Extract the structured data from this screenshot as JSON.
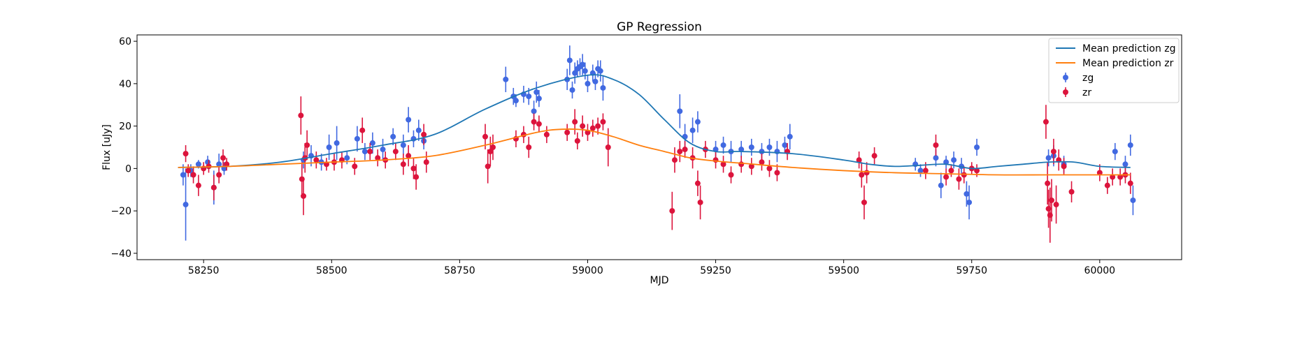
{
  "chart_data": {
    "type": "scatter",
    "title": "GP Regression",
    "xlabel": "MJD",
    "ylabel": "Flux [uJy]",
    "xlim": [
      58120,
      60160
    ],
    "ylim": [
      -43,
      63
    ],
    "xticks": [
      58250,
      58500,
      58750,
      59000,
      59250,
      59500,
      59750,
      60000
    ],
    "yticks": [
      -40,
      -20,
      0,
      20,
      40,
      60
    ],
    "legend_position": "top-right",
    "series": [
      {
        "name": "Mean prediction zg",
        "kind": "line",
        "color": "#1f77b4",
        "x": [
          58200,
          58300,
          58400,
          58500,
          58600,
          58700,
          58800,
          58900,
          59000,
          59050,
          59100,
          59150,
          59200,
          59250,
          59300,
          59400,
          59500,
          59550,
          59600,
          59650,
          59700,
          59750,
          59800,
          59850,
          59900,
          59950,
          60000,
          60060
        ],
        "y": [
          0.5,
          1,
          3,
          7,
          11,
          16,
          28,
          38,
          44,
          42,
          35,
          23,
          12,
          8,
          8,
          7,
          4,
          2,
          1,
          1.5,
          2,
          0,
          1,
          2,
          3,
          3,
          1,
          0.5
        ]
      },
      {
        "name": "Mean prediction zr",
        "kind": "line",
        "color": "#ff7f0e",
        "x": [
          58200,
          58300,
          58400,
          58500,
          58600,
          58700,
          58800,
          58900,
          58950,
          59000,
          59050,
          59100,
          59150,
          59200,
          59250,
          59300,
          59400,
          59500,
          59600,
          59700,
          59800,
          59900,
          60000,
          60060
        ],
        "y": [
          0.5,
          1,
          2,
          3,
          4,
          6,
          11,
          17,
          18.5,
          18,
          15,
          11,
          8,
          5,
          3.5,
          2.5,
          0.5,
          -1,
          -2,
          -2.5,
          -3,
          -3,
          -3,
          -3
        ]
      },
      {
        "name": "zg",
        "kind": "errorbar",
        "color": "#4169e1",
        "points": [
          [
            58210,
            -3,
            5
          ],
          [
            58215,
            -17,
            17
          ],
          [
            58225,
            -1,
            3
          ],
          [
            58240,
            2,
            2
          ],
          [
            58258,
            3,
            3
          ],
          [
            58270,
            -9,
            8
          ],
          [
            58280,
            2,
            5
          ],
          [
            58290,
            0,
            3
          ],
          [
            58445,
            4,
            4
          ],
          [
            58460,
            6,
            5
          ],
          [
            58480,
            3,
            4
          ],
          [
            58495,
            10,
            6
          ],
          [
            58510,
            12,
            8
          ],
          [
            58530,
            5,
            3
          ],
          [
            58550,
            14,
            6
          ],
          [
            58565,
            8,
            4
          ],
          [
            58580,
            12,
            5
          ],
          [
            58600,
            9,
            5
          ],
          [
            58620,
            15,
            4
          ],
          [
            58640,
            11,
            5
          ],
          [
            58650,
            23,
            6
          ],
          [
            58660,
            14,
            4
          ],
          [
            58670,
            18,
            5
          ],
          [
            58680,
            13,
            4
          ],
          [
            58840,
            42,
            6
          ],
          [
            58855,
            34,
            4
          ],
          [
            58860,
            32,
            3
          ],
          [
            58875,
            35,
            4
          ],
          [
            58885,
            34,
            4
          ],
          [
            58895,
            27,
            5
          ],
          [
            58900,
            36,
            5
          ],
          [
            58905,
            33,
            4
          ],
          [
            58960,
            42,
            5
          ],
          [
            58965,
            51,
            7
          ],
          [
            58970,
            37,
            4
          ],
          [
            58975,
            45,
            5
          ],
          [
            58980,
            47,
            4
          ],
          [
            58985,
            48,
            4
          ],
          [
            58990,
            49,
            5
          ],
          [
            58995,
            46,
            4
          ],
          [
            59000,
            40,
            4
          ],
          [
            59010,
            45,
            4
          ],
          [
            59015,
            41,
            4
          ],
          [
            59020,
            47,
            4
          ],
          [
            59025,
            46,
            5
          ],
          [
            59030,
            38,
            6
          ],
          [
            59180,
            27,
            8
          ],
          [
            59190,
            15,
            6
          ],
          [
            59205,
            18,
            6
          ],
          [
            59215,
            22,
            5
          ],
          [
            59250,
            9,
            4
          ],
          [
            59265,
            11,
            4
          ],
          [
            59280,
            8,
            5
          ],
          [
            59300,
            9,
            4
          ],
          [
            59320,
            10,
            4
          ],
          [
            59340,
            8,
            4
          ],
          [
            59355,
            10,
            4
          ],
          [
            59370,
            8,
            5
          ],
          [
            59385,
            11,
            4
          ],
          [
            59395,
            15,
            6
          ],
          [
            59640,
            2,
            3
          ],
          [
            59650,
            -1,
            3
          ],
          [
            59680,
            5,
            4
          ],
          [
            59690,
            -8,
            6
          ],
          [
            59700,
            3,
            3
          ],
          [
            59715,
            4,
            4
          ],
          [
            59730,
            1,
            4
          ],
          [
            59740,
            -12,
            6
          ],
          [
            59745,
            -16,
            8
          ],
          [
            59760,
            10,
            4
          ],
          [
            59900,
            5,
            4
          ],
          [
            59910,
            6,
            5
          ],
          [
            59930,
            2,
            4
          ],
          [
            60030,
            8,
            4
          ],
          [
            60050,
            2,
            4
          ],
          [
            60060,
            11,
            5
          ],
          [
            60065,
            -15,
            7
          ]
        ]
      },
      {
        "name": "zr",
        "kind": "errorbar",
        "color": "#dc143c",
        "points": [
          [
            58215,
            7,
            4
          ],
          [
            58220,
            -1,
            3
          ],
          [
            58230,
            -3,
            4
          ],
          [
            58240,
            -8,
            5
          ],
          [
            58250,
            0,
            3
          ],
          [
            58260,
            1,
            3
          ],
          [
            58270,
            -9,
            6
          ],
          [
            58280,
            -3,
            4
          ],
          [
            58288,
            5,
            4
          ],
          [
            58295,
            2,
            3
          ],
          [
            58440,
            25,
            9
          ],
          [
            58442,
            -5,
            8
          ],
          [
            58445,
            -13,
            9
          ],
          [
            58448,
            5,
            7
          ],
          [
            58452,
            11,
            7
          ],
          [
            58470,
            4,
            4
          ],
          [
            58490,
            2,
            3
          ],
          [
            58505,
            3,
            4
          ],
          [
            58520,
            4,
            4
          ],
          [
            58545,
            1,
            4
          ],
          [
            58560,
            18,
            6
          ],
          [
            58575,
            8,
            4
          ],
          [
            58590,
            5,
            4
          ],
          [
            58605,
            4,
            4
          ],
          [
            58625,
            8,
            4
          ],
          [
            58640,
            2,
            5
          ],
          [
            58650,
            6,
            5
          ],
          [
            58660,
            0,
            5
          ],
          [
            58665,
            -4,
            6
          ],
          [
            58680,
            16,
            5
          ],
          [
            58685,
            3,
            5
          ],
          [
            58800,
            15,
            6
          ],
          [
            58805,
            1,
            8
          ],
          [
            58810,
            8,
            7
          ],
          [
            58815,
            10,
            6
          ],
          [
            58860,
            14,
            4
          ],
          [
            58875,
            16,
            4
          ],
          [
            58885,
            10,
            5
          ],
          [
            58895,
            22,
            4
          ],
          [
            58905,
            21,
            4
          ],
          [
            58920,
            16,
            4
          ],
          [
            58960,
            17,
            4
          ],
          [
            58975,
            22,
            6
          ],
          [
            58980,
            13,
            4
          ],
          [
            58990,
            20,
            5
          ],
          [
            59000,
            17,
            4
          ],
          [
            59010,
            19,
            4
          ],
          [
            59020,
            20,
            4
          ],
          [
            59030,
            22,
            4
          ],
          [
            59040,
            10,
            9
          ],
          [
            59165,
            -20,
            9
          ],
          [
            59170,
            4,
            6
          ],
          [
            59180,
            8,
            5
          ],
          [
            59190,
            9,
            4
          ],
          [
            59205,
            5,
            5
          ],
          [
            59215,
            -7,
            6
          ],
          [
            59220,
            -16,
            8
          ],
          [
            59230,
            9,
            4
          ],
          [
            59250,
            4,
            4
          ],
          [
            59265,
            2,
            4
          ],
          [
            59280,
            -3,
            4
          ],
          [
            59300,
            2,
            4
          ],
          [
            59320,
            1,
            4
          ],
          [
            59340,
            3,
            4
          ],
          [
            59355,
            0,
            4
          ],
          [
            59370,
            -2,
            4
          ],
          [
            59390,
            8,
            4
          ],
          [
            59530,
            4,
            4
          ],
          [
            59535,
            -3,
            6
          ],
          [
            59540,
            -16,
            8
          ],
          [
            59545,
            -2,
            5
          ],
          [
            59560,
            6,
            4
          ],
          [
            59660,
            -1,
            4
          ],
          [
            59680,
            11,
            5
          ],
          [
            59700,
            -4,
            4
          ],
          [
            59710,
            -1,
            3
          ],
          [
            59725,
            -5,
            5
          ],
          [
            59735,
            -3,
            4
          ],
          [
            59750,
            0,
            3
          ],
          [
            59760,
            -1,
            3
          ],
          [
            59895,
            22,
            8
          ],
          [
            59898,
            -7,
            10
          ],
          [
            59900,
            -19,
            9
          ],
          [
            59903,
            -22,
            13
          ],
          [
            59906,
            -15,
            10
          ],
          [
            59910,
            8,
            6
          ],
          [
            59915,
            -17,
            9
          ],
          [
            59920,
            4,
            5
          ],
          [
            59930,
            1,
            4
          ],
          [
            59945,
            -11,
            5
          ],
          [
            60000,
            -2,
            4
          ],
          [
            60015,
            -8,
            4
          ],
          [
            60025,
            -4,
            4
          ],
          [
            60040,
            -4,
            4
          ],
          [
            60050,
            -3,
            4
          ],
          [
            60060,
            -7,
            5
          ]
        ]
      }
    ]
  }
}
